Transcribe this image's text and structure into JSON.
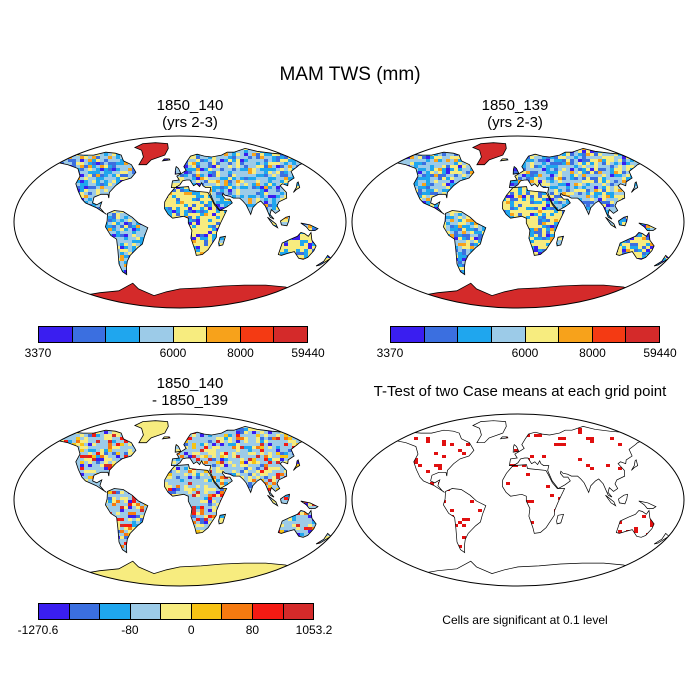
{
  "figure": {
    "title": "MAM TWS (mm)"
  },
  "panels": [
    {
      "id": "case1",
      "title_line1": "1850_140",
      "title_line2": "(yrs 2-3)"
    },
    {
      "id": "case2",
      "title_line1": "1850_139",
      "title_line2": "(yrs 2-3)"
    },
    {
      "id": "diff",
      "title_line1": "1850_140",
      "title_line2": "- 1850_139"
    },
    {
      "id": "ttest",
      "title_line1": "T-Test of two Case means at each grid point",
      "title_line2": ""
    }
  ],
  "colorbars": {
    "tws": {
      "colors": [
        "#3a1ef0",
        "#3b6fe0",
        "#1fa6ee",
        "#9ccbe8",
        "#f7ec7f",
        "#f7a21b",
        "#f43a13",
        "#d42a2a"
      ],
      "ticks": [
        "3370",
        "6000",
        "8000",
        "59440"
      ]
    },
    "diff": {
      "colors": [
        "#3a1ef0",
        "#3b6fe0",
        "#1fa6ee",
        "#9ccbe8",
        "#f7ec7f",
        "#f7c314",
        "#f57a10",
        "#f41a13",
        "#d42a2a"
      ],
      "ticks": [
        "-1270.6",
        "-80",
        "0",
        "80",
        "1053.2"
      ]
    }
  },
  "significance_note": "Cells are significant at 0.1 level",
  "chart_data": {
    "type": "heatmap",
    "title": "MAM TWS (mm)",
    "projection": "Robinson",
    "panels": [
      {
        "name": "1850_140 (yrs 2-3)",
        "variable": "TWS",
        "units": "mm",
        "season": "MAM",
        "levels": [
          3370,
          6000,
          8000,
          59440
        ],
        "min": 3370,
        "max": 59440
      },
      {
        "name": "1850_139 (yrs 2-3)",
        "variable": "TWS",
        "units": "mm",
        "season": "MAM",
        "levels": [
          3370,
          6000,
          8000,
          59440
        ],
        "min": 3370,
        "max": 59440
      },
      {
        "name": "1850_140 - 1850_139",
        "variable": "TWS difference",
        "units": "mm",
        "levels": [
          -1270.6,
          -80,
          0,
          80,
          1053.2
        ],
        "min": -1270.6,
        "max": 1053.2
      },
      {
        "name": "T-Test of two Case means at each grid point",
        "significance_level": 0.1
      }
    ]
  }
}
